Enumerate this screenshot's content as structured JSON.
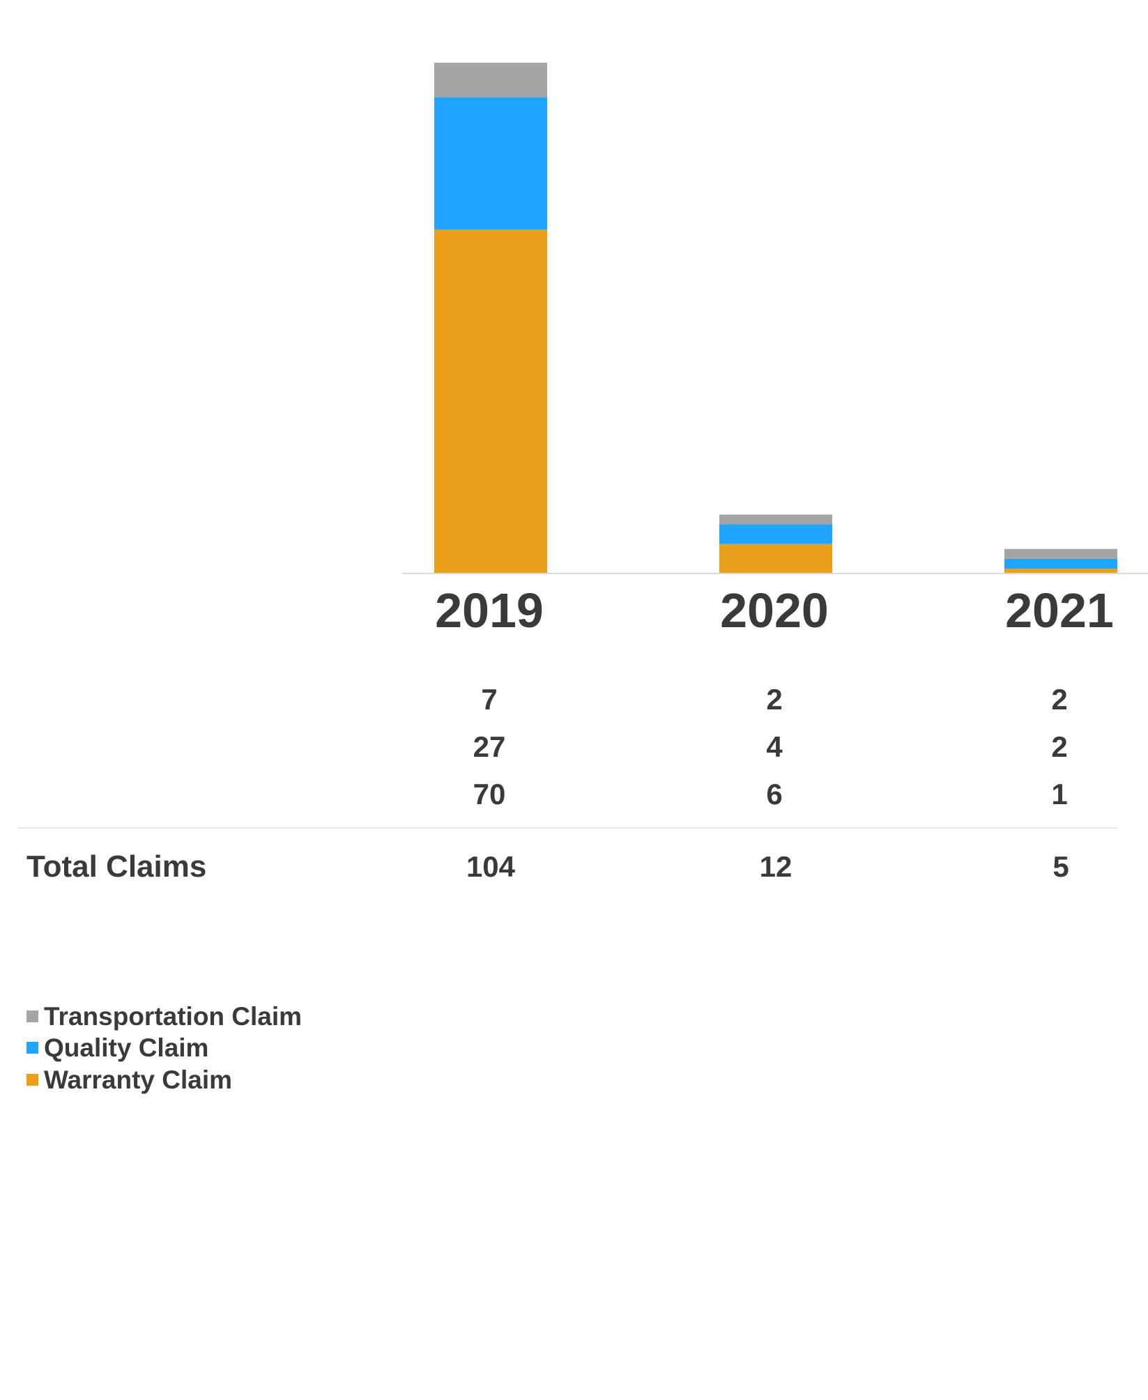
{
  "chart_data": {
    "type": "bar",
    "stacked": true,
    "title": "",
    "xlabel": "",
    "ylabel": "",
    "ylim": [
      0,
      104
    ],
    "grid": false,
    "categories": [
      "2019",
      "2020",
      "2021"
    ],
    "series": [
      {
        "name": "Warranty Claim",
        "color": "#eba01b",
        "values": [
          70,
          6,
          1
        ]
      },
      {
        "name": "Quality Claim",
        "color": "#1fa5ff",
        "values": [
          27,
          4,
          2
        ]
      },
      {
        "name": "Transportation Claim",
        "color": "#a5a5a5",
        "values": [
          7,
          2,
          2
        ]
      }
    ],
    "table": {
      "row_order": [
        "Transportation Claim",
        "Quality Claim",
        "Warranty Claim"
      ],
      "total_label": "Total Claims",
      "totals": [
        104,
        12,
        5
      ]
    },
    "legend": {
      "placement": "bottom-left",
      "entries": [
        "Transportation Claim",
        "Quality Claim",
        "Warranty Claim"
      ]
    }
  }
}
